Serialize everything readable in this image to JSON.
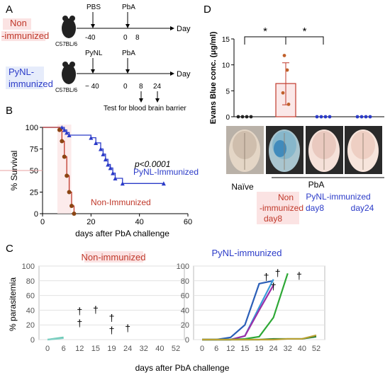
{
  "panels": {
    "a": "A",
    "b": "B",
    "c": "C",
    "d": "D"
  },
  "panelA": {
    "groups": [
      {
        "label_lines": [
          "Non",
          "-immunized"
        ],
        "color": "#c0392b",
        "label_bg": "#fbe3e3",
        "strain": "C57BL/6",
        "events": [
          "PBS",
          "PbA"
        ],
        "ticks": [
          "-40",
          "0",
          "8"
        ],
        "axis": "Day"
      },
      {
        "label_lines": [
          "PyNL-",
          "immunized"
        ],
        "color": "#2b3bc8",
        "label_bg": "#e6ecfb",
        "strain": "C57BL/6",
        "events": [
          "PyNL",
          "PbA"
        ],
        "ticks": [
          "− 40",
          "0",
          "8",
          "24"
        ],
        "axis": "Day"
      }
    ],
    "test_label": "Test for blood brain barrier"
  },
  "colors": {
    "red": "#c0392b",
    "blue": "#2b3bc8",
    "brown": "#8b4513",
    "bar_fill": "#fff",
    "dot": "#c0602b"
  },
  "chart_data": [
    {
      "id": "B",
      "type": "line",
      "subtype": "survival",
      "xlabel": "days after PbA challenge",
      "ylabel": "% Survival",
      "xlim": [
        0,
        60
      ],
      "ylim": [
        0,
        100
      ],
      "xticks": [
        0,
        20,
        40,
        60
      ],
      "yticks": [
        0,
        25,
        50,
        75,
        100
      ],
      "pvalue": "p<0.0001",
      "series": [
        {
          "name": "PyNL-Immunized",
          "color": "#2b3bc8",
          "marker": "triangle",
          "x": [
            0,
            8,
            9,
            10,
            11,
            20,
            22,
            24,
            25,
            26,
            27,
            28,
            29,
            30,
            33,
            50
          ],
          "y": [
            100,
            100,
            97,
            94,
            91,
            88,
            82,
            75,
            69,
            63,
            57,
            53,
            47,
            41,
            35,
            35
          ]
        },
        {
          "name": "Non-Immunized",
          "color": "#c0392b",
          "marker": "circle",
          "marker_color": "#8b4513",
          "x": [
            0,
            7,
            8,
            9,
            10,
            11,
            12,
            13
          ],
          "y": [
            100,
            97,
            84,
            66,
            44,
            25,
            9,
            0
          ]
        }
      ]
    },
    {
      "id": "C-left",
      "type": "line",
      "title": "Non-immunized",
      "xlabel": "days after PbA challenge",
      "ylabel": "% parasitemia",
      "categories": [
        "0",
        "6",
        "12",
        "15",
        "19",
        "24",
        "32",
        "40",
        "52"
      ],
      "ylim": [
        0,
        100
      ],
      "yticks": [
        0,
        20,
        40,
        60,
        80,
        100
      ],
      "series": [
        {
          "color": "#5cc5a8",
          "values": [
            0,
            3,
            null,
            null,
            null,
            null,
            null,
            null,
            null
          ]
        },
        {
          "color": "#7fd0c5",
          "values": [
            0,
            2,
            null,
            null,
            null,
            null,
            null,
            null,
            null
          ]
        }
      ],
      "death_marks": [
        {
          "x": 2,
          "y": 34
        },
        {
          "x": 3,
          "y": 36
        },
        {
          "x": 2,
          "y": 18
        },
        {
          "x": 4,
          "y": 25
        },
        {
          "x": 4,
          "y": 8
        },
        {
          "x": 5,
          "y": 11
        }
      ],
      "death_symbol": "†"
    },
    {
      "id": "C-right",
      "type": "line",
      "title": "PyNL-immunized",
      "categories": [
        "0",
        "6",
        "12",
        "15",
        "19",
        "24",
        "32",
        "40",
        "52"
      ],
      "ylim": [
        0,
        100
      ],
      "yticks": [
        0,
        20,
        40,
        60,
        80,
        100
      ],
      "series": [
        {
          "color": "#2b5fb8",
          "values": [
            0,
            0,
            3,
            20,
            76,
            80,
            null,
            null,
            null
          ]
        },
        {
          "color": "#3c9ad9",
          "values": [
            0,
            0,
            0,
            5,
            44,
            82,
            null,
            null,
            null
          ]
        },
        {
          "color": "#9b2fa8",
          "values": [
            0,
            0,
            0,
            5,
            40,
            74,
            null,
            null,
            null
          ]
        },
        {
          "color": "#2ea836",
          "values": [
            0,
            0,
            0,
            1,
            4,
            30,
            90,
            null,
            null
          ]
        },
        {
          "color": "#1f7a30",
          "values": [
            0,
            0,
            0,
            0,
            0,
            1,
            1,
            1,
            4
          ]
        },
        {
          "color": "#b8a032",
          "values": [
            0,
            0,
            0,
            0,
            0,
            0,
            1,
            1,
            6
          ]
        }
      ],
      "death_marks": [
        {
          "x": 4.5,
          "y": 81
        },
        {
          "x": 5.3,
          "y": 86
        },
        {
          "x": 5.0,
          "y": 68
        },
        {
          "x": 6.8,
          "y": 82
        }
      ],
      "death_symbol": "†"
    },
    {
      "id": "D",
      "type": "bar",
      "ylabel": "Evans Blue conc. (μg/ml)",
      "ylim": [
        0,
        15
      ],
      "yticks": [
        0,
        5,
        10,
        15
      ],
      "categories": [
        "Naïve",
        "Non -immunized day8",
        "PyNL-immunized day8",
        "PyNL-immunized day24"
      ],
      "values": [
        0,
        6.4,
        0,
        0
      ],
      "error_bar": [
        null,
        [
          2.3,
          10.4
        ],
        null,
        null
      ],
      "points": [
        [
          0,
          0,
          0,
          0
        ],
        [
          11.8,
          9.0,
          4.6,
          2.4
        ],
        [
          0,
          0,
          0,
          0
        ],
        [
          0,
          0,
          0,
          0
        ]
      ],
      "point_colors": [
        "#222222",
        "#c0602b",
        "#2b3bc8",
        "#2b3bc8"
      ],
      "significance": [
        "*",
        "*"
      ],
      "group_header": "PbA",
      "xlabels": [
        {
          "lines": [
            "Naïve"
          ],
          "color": "#111111",
          "bg": ""
        },
        {
          "lines": [
            "Non",
            "-immunized",
            "day8"
          ],
          "color": "#c0392b",
          "bg": "#fbe3e3"
        },
        {
          "lines": [
            "PyNL-immunized",
            "day8"
          ],
          "color": "#2b3bc8",
          "bg": ""
        },
        {
          "lines": [
            "day24"
          ],
          "color": "#2b3bc8",
          "bg": ""
        }
      ]
    }
  ]
}
